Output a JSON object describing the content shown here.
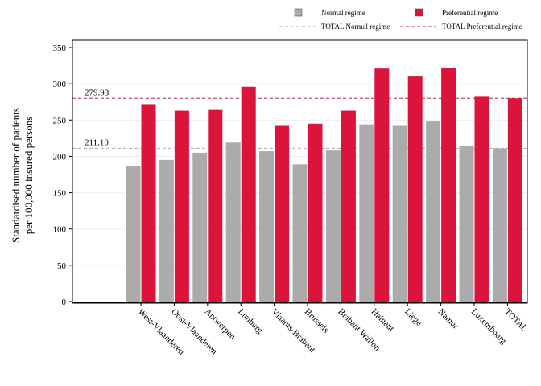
{
  "chart_data": {
    "type": "bar",
    "ylabel_lines": [
      "Standardised number of patients",
      "per 100,000 insured persons"
    ],
    "categories": [
      "West-Vlaanderen",
      "Oost-Vlaanderen",
      "Antwerpen",
      "Limburg",
      "Vlaams-Brabant",
      "Brussels",
      "Brabant Wallon",
      "Hainaut",
      "Liège",
      "Namur",
      "Luxembourg",
      "TOTAL"
    ],
    "series": [
      {
        "name": "Normal regime",
        "color": "#ababab",
        "values": [
          187,
          195,
          205,
          219,
          207,
          189,
          208,
          244,
          242,
          248,
          215,
          211
        ]
      },
      {
        "name": "Preferential regime",
        "color": "#dc143c",
        "values": [
          272,
          263,
          264,
          296,
          242,
          245,
          263,
          321,
          310,
          322,
          282,
          280
        ]
      }
    ],
    "reference_lines": [
      {
        "name": "TOTAL Normal regime",
        "value": 211.1,
        "label": "211.10",
        "color": "#ababab"
      },
      {
        "name": "TOTAL Preferential regime",
        "value": 279.93,
        "label": "279.93",
        "color": "#b0234f"
      }
    ],
    "yticks": [
      "0",
      "50",
      "100",
      "150",
      "200",
      "250",
      "300",
      "350"
    ],
    "ylim": [
      0,
      350
    ],
    "grid": true,
    "legend_position": "top"
  }
}
